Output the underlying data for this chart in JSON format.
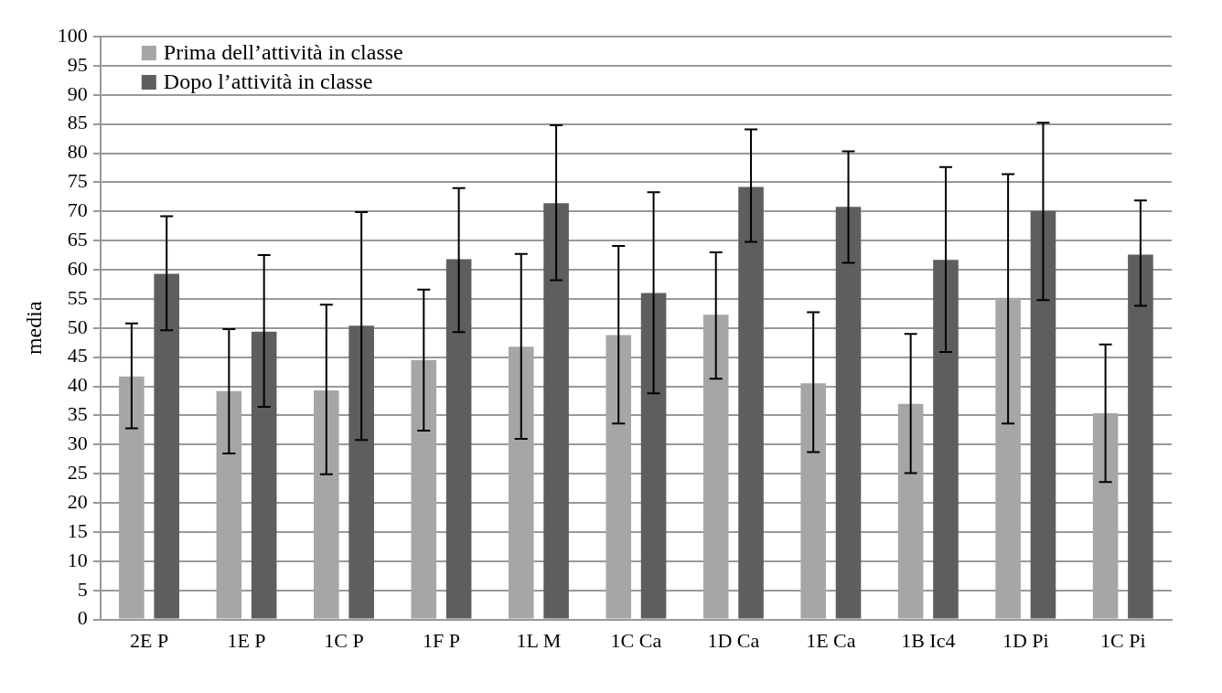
{
  "chart_data": {
    "type": "bar",
    "ylabel": "media",
    "categories": [
      "2E P",
      "1E P",
      "1C P",
      "1F P",
      "1L M",
      "1C Ca",
      "1D Ca",
      "1E Ca",
      "1B Ic4",
      "1D Pi",
      "1C Pi"
    ],
    "series": [
      {
        "name": "Prima dell’attività in classe",
        "color": "#a6a6a6",
        "values": [
          41.7,
          39.2,
          39.3,
          44.5,
          46.8,
          48.8,
          52.3,
          40.5,
          37,
          55.2,
          35.4
        ],
        "errors": [
          [
            32.8,
            50.8
          ],
          [
            28.5,
            49.8
          ],
          [
            24.9,
            54
          ],
          [
            32.4,
            56.6
          ],
          [
            31,
            62.7
          ],
          [
            33.6,
            64.1
          ],
          [
            41.3,
            63
          ],
          [
            28.7,
            52.7
          ],
          [
            25.1,
            49
          ],
          [
            33.6,
            76.4
          ],
          [
            23.6,
            47.2
          ]
        ]
      },
      {
        "name": "Dopo l’attività in classe",
        "color": "#5e5e5e",
        "values": [
          59.3,
          49.4,
          50.4,
          61.8,
          71.4,
          56,
          74.2,
          70.8,
          61.7,
          70.1,
          62.6
        ],
        "errors": [
          [
            49.6,
            69.2
          ],
          [
            36.5,
            62.5
          ],
          [
            30.8,
            69.9
          ],
          [
            49.3,
            74
          ],
          [
            58.2,
            84.8
          ],
          [
            38.8,
            73.3
          ],
          [
            64.8,
            84.1
          ],
          [
            61.2,
            80.3
          ],
          [
            45.9,
            77.6
          ],
          [
            54.8,
            85.2
          ],
          [
            53.8,
            71.9
          ]
        ]
      }
    ],
    "ylim": [
      0,
      100
    ],
    "yticks": [
      0,
      5,
      10,
      15,
      20,
      25,
      30,
      35,
      40,
      45,
      50,
      55,
      60,
      65,
      70,
      75,
      80,
      85,
      90,
      95,
      100
    ],
    "grid": "y",
    "legend": "top left"
  }
}
